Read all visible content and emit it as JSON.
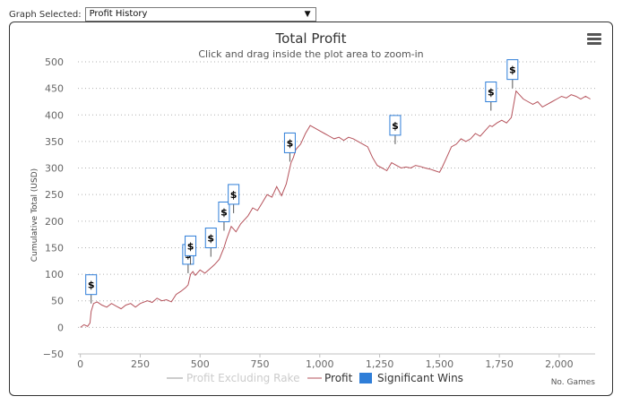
{
  "header": {
    "graph_selected_label": "Graph Selected:",
    "selected_graph": "Profit History"
  },
  "icons": {
    "menu": "hamburger-menu-icon",
    "win_marker": "dollar-sign-flag-icon"
  },
  "colors": {
    "profit_line": "#b5525b",
    "excluding_rake_legend": "#cccccc",
    "significant_wins": "#2f7ed8",
    "gridline": "#b0b0b0"
  },
  "chart_data": {
    "type": "line",
    "title": "Total Profit",
    "subtitle": "Click and drag inside the plot area to zoom-in",
    "ylabel": "Cumulative Total (USD)",
    "xlabel": "No. Games",
    "xlim": [
      -10,
      2150
    ],
    "ylim": [
      -50,
      500
    ],
    "x_ticks": [
      0,
      250,
      500,
      750,
      1000,
      1250,
      1500,
      1750,
      2000
    ],
    "x_tick_labels": [
      "0",
      "250",
      "500",
      "750",
      "1,000",
      "1,250",
      "1,500",
      "1,750",
      "2,000"
    ],
    "y_ticks": [
      -50,
      0,
      50,
      100,
      150,
      200,
      250,
      300,
      350,
      400,
      450,
      500
    ],
    "y_tick_labels": [
      "−50",
      "0",
      "50",
      "100",
      "150",
      "200",
      "250",
      "300",
      "350",
      "400",
      "450",
      "500"
    ],
    "grid": true,
    "legend": [
      {
        "name": "Profit Excluding Rake",
        "visible": false
      },
      {
        "name": "Profit",
        "visible": true
      },
      {
        "name": "Significant Wins",
        "visible": true
      }
    ],
    "series": [
      {
        "name": "Profit",
        "x": [
          0,
          15,
          30,
          40,
          45,
          55,
          70,
          90,
          110,
          130,
          150,
          170,
          190,
          210,
          230,
          250,
          280,
          300,
          320,
          340,
          360,
          380,
          400,
          420,
          440,
          450,
          460,
          470,
          480,
          500,
          520,
          540,
          560,
          580,
          600,
          610,
          630,
          650,
          670,
          700,
          720,
          740,
          760,
          780,
          800,
          820,
          840,
          860,
          875,
          880,
          890,
          900,
          920,
          940,
          960,
          980,
          1000,
          1020,
          1040,
          1060,
          1080,
          1100,
          1120,
          1140,
          1160,
          1180,
          1200,
          1220,
          1240,
          1260,
          1280,
          1300,
          1320,
          1340,
          1360,
          1380,
          1400,
          1420,
          1440,
          1460,
          1480,
          1500,
          1510,
          1530,
          1550,
          1570,
          1590,
          1610,
          1630,
          1650,
          1670,
          1690,
          1710,
          1720,
          1740,
          1760,
          1780,
          1800,
          1810,
          1820,
          1830,
          1850,
          1870,
          1890,
          1910,
          1930,
          1950,
          1970,
          1990,
          2010,
          2030,
          2050,
          2070,
          2090,
          2110,
          2130
        ],
        "values": [
          0,
          5,
          2,
          8,
          30,
          45,
          48,
          42,
          38,
          45,
          40,
          35,
          42,
          45,
          38,
          45,
          50,
          47,
          55,
          50,
          52,
          48,
          62,
          68,
          75,
          80,
          100,
          105,
          98,
          108,
          102,
          110,
          118,
          128,
          150,
          165,
          190,
          180,
          195,
          210,
          225,
          220,
          235,
          250,
          245,
          265,
          248,
          270,
          300,
          310,
          320,
          335,
          345,
          365,
          380,
          375,
          370,
          365,
          360,
          355,
          358,
          352,
          358,
          355,
          350,
          345,
          340,
          320,
          305,
          300,
          295,
          310,
          305,
          300,
          302,
          300,
          305,
          303,
          300,
          298,
          295,
          292,
          300,
          320,
          340,
          345,
          355,
          350,
          355,
          365,
          360,
          370,
          380,
          378,
          385,
          390,
          385,
          395,
          420,
          445,
          440,
          430,
          425,
          420,
          425,
          415,
          420,
          425,
          430,
          435,
          432,
          438,
          435,
          430,
          435,
          430
        ]
      },
      {
        "name": "Significant Wins",
        "type": "flags",
        "label": "$",
        "x": [
          45,
          450,
          460,
          545,
          600,
          640,
          875,
          1315,
          1715,
          1805
        ],
        "values": [
          45,
          102,
          118,
          133,
          182,
          215,
          312,
          345,
          408,
          450
        ]
      }
    ]
  }
}
